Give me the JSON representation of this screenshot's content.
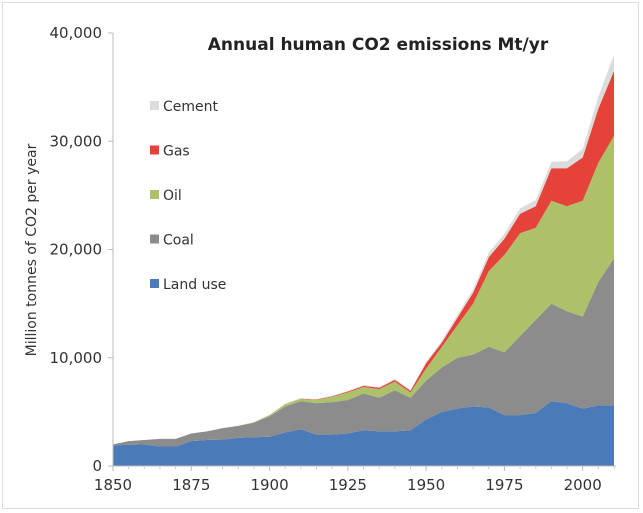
{
  "chart_data": {
    "type": "area",
    "stacked": true,
    "title": "Annual human CO2 emissions  Mt/yr",
    "xlabel": "",
    "ylabel": "Million tonnes of CO2 per year",
    "xlim": [
      1850,
      2010
    ],
    "ylim": [
      0,
      40000
    ],
    "xticks": [
      "1850",
      "1875",
      "1900",
      "1925",
      "1950",
      "1975",
      "2000"
    ],
    "yticks": [
      "0",
      "10,000",
      "20,000",
      "30,000",
      "40,000"
    ],
    "legend_position": "top-left",
    "x": [
      1850,
      1855,
      1860,
      1865,
      1870,
      1875,
      1880,
      1885,
      1890,
      1895,
      1900,
      1905,
      1910,
      1915,
      1920,
      1925,
      1930,
      1935,
      1940,
      1945,
      1950,
      1955,
      1960,
      1965,
      1970,
      1975,
      1980,
      1985,
      1990,
      1995,
      2000,
      2005,
      2010
    ],
    "series": [
      {
        "name": "Land use",
        "color": "#4a7ab8",
        "values": [
          1900,
          1950,
          2000,
          1800,
          1800,
          2300,
          2400,
          2450,
          2600,
          2650,
          2700,
          3100,
          3400,
          2900,
          2900,
          3000,
          3300,
          3200,
          3200,
          3300,
          4300,
          5000,
          5300,
          5500,
          5400,
          4700,
          4700,
          4900,
          6000,
          5800,
          5300,
          5600,
          5600
        ]
      },
      {
        "name": "Coal",
        "color": "#8c8c8c",
        "values": [
          100,
          350,
          400,
          700,
          700,
          700,
          800,
          1050,
          1100,
          1350,
          1900,
          2400,
          2600,
          2900,
          3000,
          3100,
          3400,
          3100,
          3800,
          3000,
          3600,
          4100,
          4700,
          4800,
          5600,
          5800,
          7300,
          8600,
          9000,
          8500,
          8500,
          11400,
          13600
        ]
      },
      {
        "name": "Oil",
        "color": "#adc06a",
        "values": [
          0,
          0,
          0,
          0,
          0,
          0,
          0,
          0,
          20,
          50,
          100,
          200,
          200,
          300,
          500,
          700,
          600,
          800,
          800,
          500,
          1100,
          1900,
          3000,
          4700,
          7000,
          9000,
          9500,
          8500,
          9500,
          9700,
          10700,
          11000,
          11300
        ]
      },
      {
        "name": "Gas",
        "color": "#e5423a",
        "values": [
          0,
          0,
          0,
          0,
          0,
          0,
          0,
          0,
          0,
          0,
          10,
          20,
          30,
          40,
          50,
          80,
          100,
          120,
          150,
          150,
          500,
          400,
          700,
          1000,
          1300,
          1500,
          1800,
          2000,
          3000,
          3500,
          4000,
          5000,
          6000
        ]
      },
      {
        "name": "Cement",
        "color": "#dcdcdc",
        "values": [
          0,
          0,
          0,
          0,
          0,
          0,
          0,
          0,
          0,
          0,
          30,
          40,
          50,
          50,
          60,
          70,
          80,
          90,
          100,
          90,
          120,
          180,
          250,
          320,
          400,
          450,
          500,
          550,
          600,
          650,
          800,
          1100,
          1500
        ]
      }
    ]
  }
}
